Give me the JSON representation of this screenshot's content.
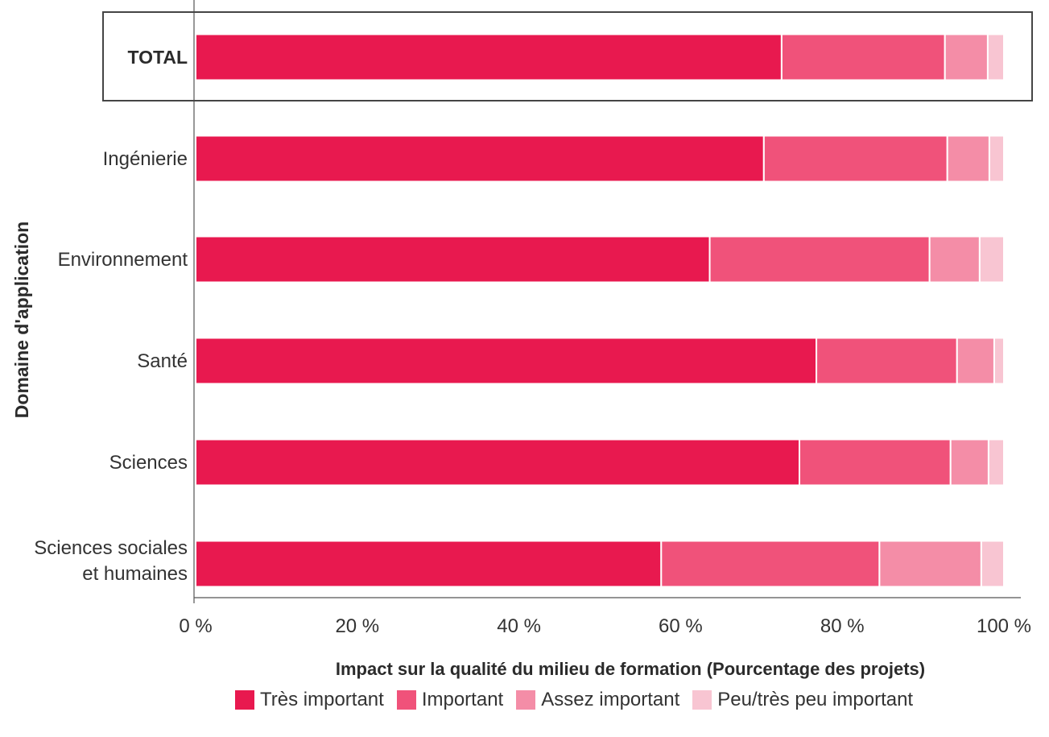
{
  "chart_data": {
    "type": "bar",
    "orientation": "horizontal",
    "stacked": true,
    "categories": [
      "TOTAL",
      "Ingénierie",
      "Environnement",
      "Santé",
      "Sciences",
      "Sciences sociales et humaines"
    ],
    "category_lines": [
      [
        "TOTAL"
      ],
      [
        "Ingénierie"
      ],
      [
        "Environnement"
      ],
      [
        "Santé"
      ],
      [
        "Sciences"
      ],
      [
        "Sciences sociales",
        "et humaines"
      ]
    ],
    "highlighted_category": "TOTAL",
    "series": [
      {
        "name": "Très important",
        "color": "#e8194f",
        "values": [
          72.5,
          70.3,
          63.6,
          76.8,
          74.7,
          57.6
        ]
      },
      {
        "name": "Important",
        "color": "#f0527a",
        "values": [
          20.2,
          22.7,
          27.2,
          17.4,
          18.7,
          27.0
        ]
      },
      {
        "name": "Assez important",
        "color": "#f48da7",
        "values": [
          5.3,
          5.2,
          6.2,
          4.6,
          4.7,
          12.6
        ]
      },
      {
        "name": "Peu/très peu important",
        "color": "#f8c5d2",
        "values": [
          2.0,
          1.8,
          3.0,
          1.2,
          1.9,
          2.8
        ]
      }
    ],
    "xlim": [
      0,
      100
    ],
    "x_ticks": [
      0,
      20,
      40,
      60,
      80,
      100
    ],
    "x_tick_labels": [
      "0 %",
      "20 %",
      "40 %",
      "60 %",
      "80 %",
      "100 %"
    ],
    "xlabel": "Impact sur la qualité du milieu de formation (Pourcentage des projets)",
    "ylabel": "Domaine d'application",
    "title": "",
    "grid": false,
    "legend_position": "bottom"
  }
}
